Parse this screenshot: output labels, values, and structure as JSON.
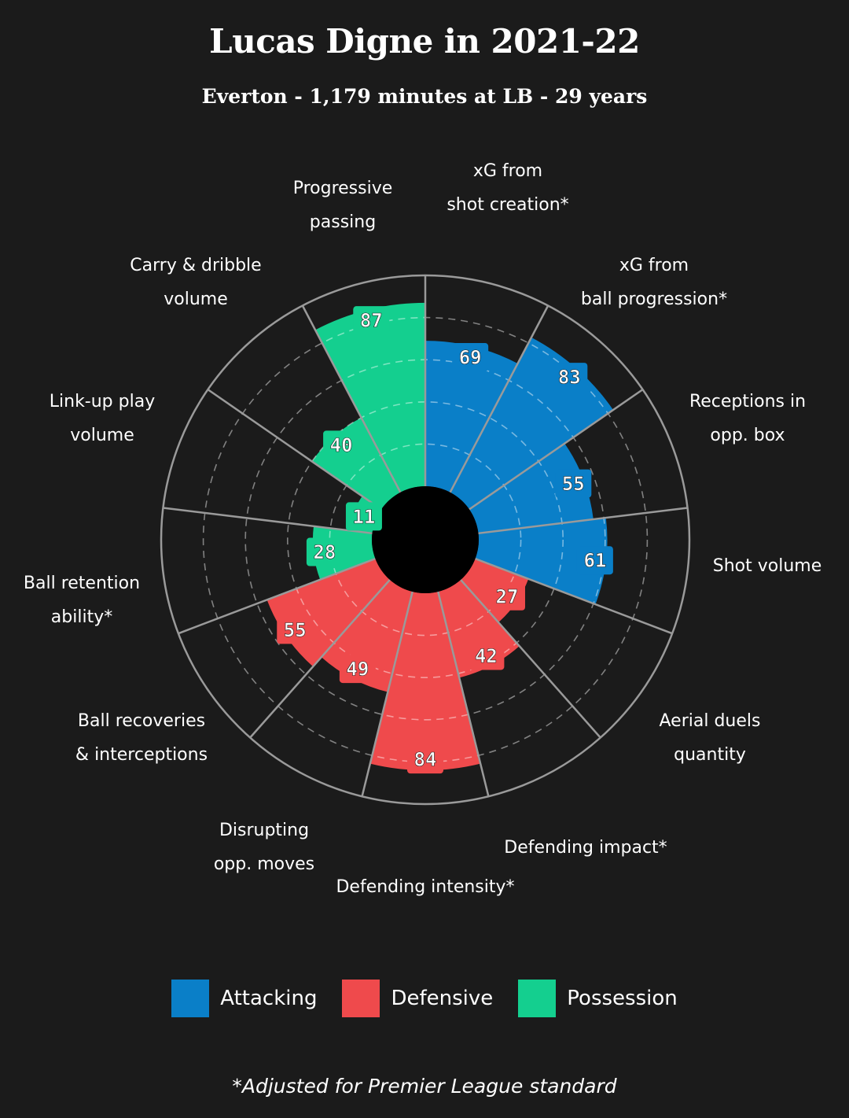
{
  "chart_data": {
    "type": "polar-bar",
    "title": "Lucas Digne in 2021-22",
    "subtitle": "Everton - 1,179 minutes at LB - 29 years",
    "rlim": [
      0,
      100
    ],
    "grid": true,
    "legend_position": "bottom",
    "groups": [
      {
        "name": "Attacking",
        "color": "#0a7fc8"
      },
      {
        "name": "Defensive",
        "color": "#ef4a4c"
      },
      {
        "name": "Possession",
        "color": "#14cf8f"
      }
    ],
    "metrics": [
      {
        "label": [
          "xG from",
          "shot creation*"
        ],
        "value": 69,
        "group": "Attacking"
      },
      {
        "label": [
          "xG from",
          "ball progression*"
        ],
        "value": 83,
        "group": "Attacking"
      },
      {
        "label": [
          "Receptions in",
          "opp. box"
        ],
        "value": 55,
        "group": "Attacking"
      },
      {
        "label": [
          "Shot volume"
        ],
        "value": 61,
        "group": "Attacking"
      },
      {
        "label": [
          "Aerial duels",
          "quantity"
        ],
        "value": 27,
        "group": "Defensive"
      },
      {
        "label": [
          "Defending impact*"
        ],
        "value": 42,
        "group": "Defensive"
      },
      {
        "label": [
          "Defending intensity*"
        ],
        "value": 84,
        "group": "Defensive"
      },
      {
        "label": [
          "Disrupting",
          "opp. moves"
        ],
        "value": 49,
        "group": "Defensive"
      },
      {
        "label": [
          "Ball recoveries",
          "& interceptions"
        ],
        "value": 55,
        "group": "Defensive"
      },
      {
        "label": [
          "Ball retention",
          "ability*"
        ],
        "value": 28,
        "group": "Possession"
      },
      {
        "label": [
          "Link-up play",
          "volume"
        ],
        "value": 11,
        "group": "Possession"
      },
      {
        "label": [
          "Carry & dribble",
          "volume"
        ],
        "value": 40,
        "group": "Possession"
      },
      {
        "label": [
          "Progressive",
          "passing"
        ],
        "value": 87,
        "group": "Possession"
      }
    ],
    "footnote": "*Adjusted for Premier League standard"
  }
}
